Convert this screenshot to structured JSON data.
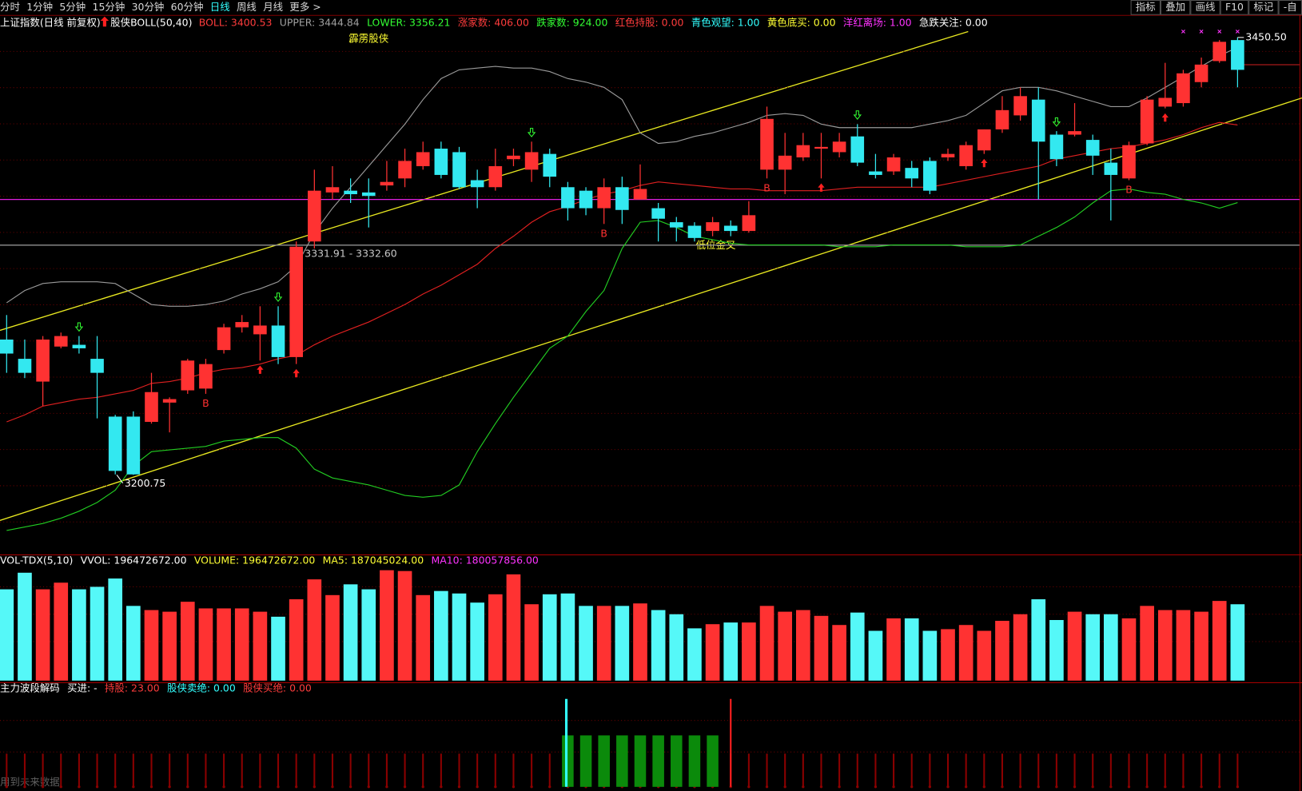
{
  "toolbar": {
    "tabs": [
      "分时",
      "1分钟",
      "5分钟",
      "15分钟",
      "30分钟",
      "60分钟",
      "日线",
      "周线",
      "月线",
      "更多 >"
    ],
    "active": "日线",
    "buttons": [
      "指标",
      "叠加",
      "画线",
      "F10",
      "标记",
      "-自"
    ]
  },
  "chart_data": {
    "type": "candlestick",
    "title": "上证指数(日线 前复权)",
    "indicator": "股侠BOLL(50,40)",
    "readouts": [
      {
        "text": "BOLL: 3400.53",
        "color": "#ff3c3c"
      },
      {
        "text": "UPPER: 3444.84",
        "color": "#a0a0a0"
      },
      {
        "text": "LOWER: 3356.21",
        "color": "#33ff33"
      },
      {
        "text": "涨家数: 406.00",
        "color": "#ff3c3c"
      },
      {
        "text": "跌家数: 924.00",
        "color": "#33ff33"
      },
      {
        "text": "红色持股: 0.00",
        "color": "#ff3c3c"
      },
      {
        "text": "青色观望: 1.00",
        "color": "#33ffff"
      },
      {
        "text": "黄色底买: 0.00",
        "color": "#ffff33"
      },
      {
        "text": "洋红离场: 1.00",
        "color": "#ff33ff"
      },
      {
        "text": "急跌关注: 0.00",
        "color": "#ffffff"
      }
    ],
    "annotations": {
      "name": "霹雳股侠",
      "range": "3331.91 - 3332.60",
      "cross": "低位金叉",
      "high": {
        "value": 3450.5,
        "label": "3450.50"
      },
      "low": {
        "value": 3200.75,
        "label": "3200.75"
      },
      "signal": "B"
    },
    "ylim": [
      3155.3,
      3462.4
    ],
    "up_color": "#ff3232",
    "down_color": "#33e8f0",
    "open": [
      3278,
      3267,
      3254,
      3274,
      3275,
      3267,
      3234,
      3234,
      3231,
      3242,
      3249,
      3250,
      3272,
      3285,
      3281,
      3286,
      3268,
      3334,
      3362,
      3363,
      3362,
      3366,
      3370,
      3377,
      3387,
      3385,
      3369,
      3365,
      3381,
      3375,
      3384,
      3365,
      3363,
      3353,
      3365,
      3358,
      3353,
      3345,
      3343,
      3340,
      3343,
      3340,
      3375,
      3375,
      3382,
      3387,
      3385,
      3394,
      3374,
      3374,
      3376,
      3380,
      3382,
      3377,
      3386,
      3398,
      3406,
      3415,
      3395,
      3395,
      3392,
      3379,
      3370,
      3390,
      3411,
      3413,
      3425,
      3437,
      3449
    ],
    "high": [
      3292,
      3278,
      3280,
      3282,
      3280,
      3280,
      3235,
      3237,
      3259,
      3245,
      3267,
      3267,
      3287,
      3292,
      3297,
      3297,
      3334,
      3375,
      3377,
      3370,
      3370,
      3380,
      3387,
      3391,
      3391,
      3388,
      3375,
      3387,
      3387,
      3391,
      3387,
      3368,
      3365,
      3370,
      3371,
      3378,
      3356,
      3348,
      3345,
      3348,
      3346,
      3357,
      3411,
      3396,
      3396,
      3396,
      3396,
      3401,
      3384,
      3384,
      3380,
      3382,
      3387,
      3391,
      3398,
      3417,
      3422,
      3422,
      3397,
      3413,
      3395,
      3387,
      3391,
      3417,
      3436,
      3432,
      3439,
      3449,
      3450.5
    ],
    "low": [
      3259,
      3256,
      3240,
      3273,
      3270,
      3233,
      3201,
      3200.75,
      3230,
      3225,
      3247,
      3247,
      3270,
      3282,
      3266,
      3264,
      3264,
      3330,
      3358,
      3356,
      3342,
      3363,
      3365,
      3375,
      3370,
      3364,
      3353,
      3363,
      3377,
      3368,
      3365,
      3346,
      3349,
      3344,
      3344,
      3358,
      3334,
      3334,
      3334,
      3337,
      3337,
      3339,
      3370,
      3361,
      3380,
      3370,
      3382,
      3377,
      3370,
      3372,
      3365,
      3361,
      3380,
      3375,
      3384,
      3396,
      3403,
      3358,
      3377,
      3394,
      3372,
      3346,
      3369,
      3389,
      3410,
      3411,
      3422,
      3436,
      3422
    ],
    "close": [
      3270,
      3259,
      3278,
      3280,
      3273,
      3259,
      3203,
      3201,
      3248,
      3244,
      3266,
      3264,
      3285,
      3288,
      3286,
      3268,
      3331,
      3363,
      3365,
      3361,
      3360,
      3368,
      3380,
      3385,
      3372,
      3365,
      3365,
      3377,
      3383,
      3385,
      3371,
      3353,
      3353,
      3365,
      3352,
      3364,
      3347,
      3342,
      3336,
      3345,
      3340,
      3349,
      3404,
      3383,
      3389,
      3388,
      3391,
      3379,
      3372,
      3382,
      3370,
      3363,
      3384,
      3389,
      3398,
      3409,
      3417,
      3391,
      3381,
      3397,
      3383,
      3372,
      3389,
      3415,
      3416,
      3430,
      3435,
      3448,
      3432
    ],
    "bands": [
      {
        "color": "#9a9a9a",
        "values": [
          3299,
          3306,
          3310,
          3311,
          3311,
          3311,
          3310,
          3304,
          3298,
          3297,
          3297,
          3298,
          3300,
          3304,
          3307,
          3311,
          3320,
          3339,
          3353,
          3365,
          3377,
          3389,
          3401,
          3415,
          3427,
          3432,
          3433,
          3434,
          3433,
          3433,
          3431,
          3427,
          3425,
          3422,
          3415,
          3396,
          3390,
          3391,
          3394,
          3396,
          3399,
          3402,
          3406,
          3407,
          3406,
          3401,
          3399,
          3399,
          3399,
          3399,
          3399,
          3401,
          3403,
          3406,
          3413,
          3420,
          3422,
          3422,
          3420,
          3417,
          3414,
          3411,
          3411,
          3416,
          3422,
          3428,
          3434,
          3440,
          3444.84
        ]
      },
      {
        "color": "#e02020",
        "values": [
          3231,
          3235,
          3240,
          3242,
          3244,
          3245,
          3247,
          3249,
          3253,
          3254,
          3256,
          3259,
          3261,
          3262,
          3264,
          3267,
          3269,
          3275,
          3280,
          3284,
          3288,
          3293,
          3298,
          3304,
          3309,
          3315,
          3321,
          3330,
          3337,
          3345,
          3351,
          3354,
          3358,
          3361,
          3363,
          3366,
          3368,
          3367,
          3366,
          3365,
          3364,
          3364,
          3363,
          3363,
          3363,
          3363,
          3364,
          3365,
          3365,
          3365,
          3365,
          3365,
          3367,
          3369,
          3371,
          3373,
          3375,
          3377,
          3381,
          3383,
          3385,
          3387,
          3388,
          3390,
          3392,
          3395,
          3399,
          3402,
          3400.53
        ]
      },
      {
        "color": "#22cc22",
        "values": [
          3169,
          3171,
          3173,
          3176,
          3180,
          3185,
          3192,
          3206,
          3214,
          3215,
          3216,
          3217,
          3220,
          3221,
          3222,
          3222,
          3216,
          3204,
          3199,
          3197,
          3195,
          3192,
          3189,
          3188,
          3189,
          3195,
          3214,
          3230,
          3245,
          3259,
          3273,
          3280,
          3294,
          3306,
          3330,
          3345,
          3346,
          3342,
          3337,
          3335,
          3333,
          3332,
          3332,
          3332,
          3332,
          3332,
          3331,
          3331,
          3331,
          3332,
          3332,
          3332,
          3332,
          3331,
          3331,
          3331,
          3332,
          3337,
          3342,
          3348,
          3356,
          3363,
          3364,
          3362,
          3361,
          3358,
          3356,
          3353,
          3356.21
        ]
      }
    ],
    "levels": [
      {
        "value": 3358,
        "color": "#e020e0"
      },
      {
        "value": 3331.91,
        "color": "#909090"
      }
    ],
    "volume_readouts": [
      {
        "text": "VOL-TDX(5,10)",
        "color": "#ffffff"
      },
      {
        "text": "VVOL: 196472672.00",
        "color": "#ffffff"
      },
      {
        "text": "VOLUME: 196472672.00",
        "color": "#ffff33"
      },
      {
        "text": "MA5: 187045024.00",
        "color": "#ffff33"
      },
      {
        "text": "MA10: 180057856.00",
        "color": "#ff33ff"
      }
    ],
    "volume_ylim": [
      0,
      324600000
    ],
    "volume": [
      234900000,
      277600000,
      234900000,
      252000000,
      234900000,
      241300000,
      262700000,
      192200000,
      181500000,
      177300000,
      202900000,
      185800000,
      185800000,
      185800000,
      177300000,
      164400000,
      209300000,
      260500000,
      220000000,
      247700000,
      234900000,
      284000000,
      281900000,
      220000000,
      230600000,
      224200000,
      200700000,
      222100000,
      273400000,
      196500000,
      222100000,
      224200000,
      192200000,
      192200000,
      192200000,
      198600000,
      181500000,
      170800000,
      134500000,
      145200000,
      149500000,
      149500000,
      192200000,
      177300000,
      181500000,
      166600000,
      143100000,
      175100000,
      128100000,
      160200000,
      160200000,
      128100000,
      132400000,
      143100000,
      128100000,
      153800000,
      170800000,
      209300000,
      155900000,
      177300000,
      170800000,
      170800000,
      160200000,
      192200000,
      181500000,
      181500000,
      177300000,
      205000000,
      196472672
    ],
    "lower_readouts": [
      {
        "text": "主力波段解码",
        "color": "#ffffff"
      },
      {
        "text": "买进: -",
        "color": "#ffffff"
      },
      {
        "text": "持股: 23.00",
        "color": "#ff3c3c"
      },
      {
        "text": "股侠卖绝: 0.00",
        "color": "#33ffff"
      },
      {
        "text": "股侠买绝: 0.00",
        "color": "#ff3c3c"
      }
    ],
    "footnote": "用到未来数据"
  }
}
